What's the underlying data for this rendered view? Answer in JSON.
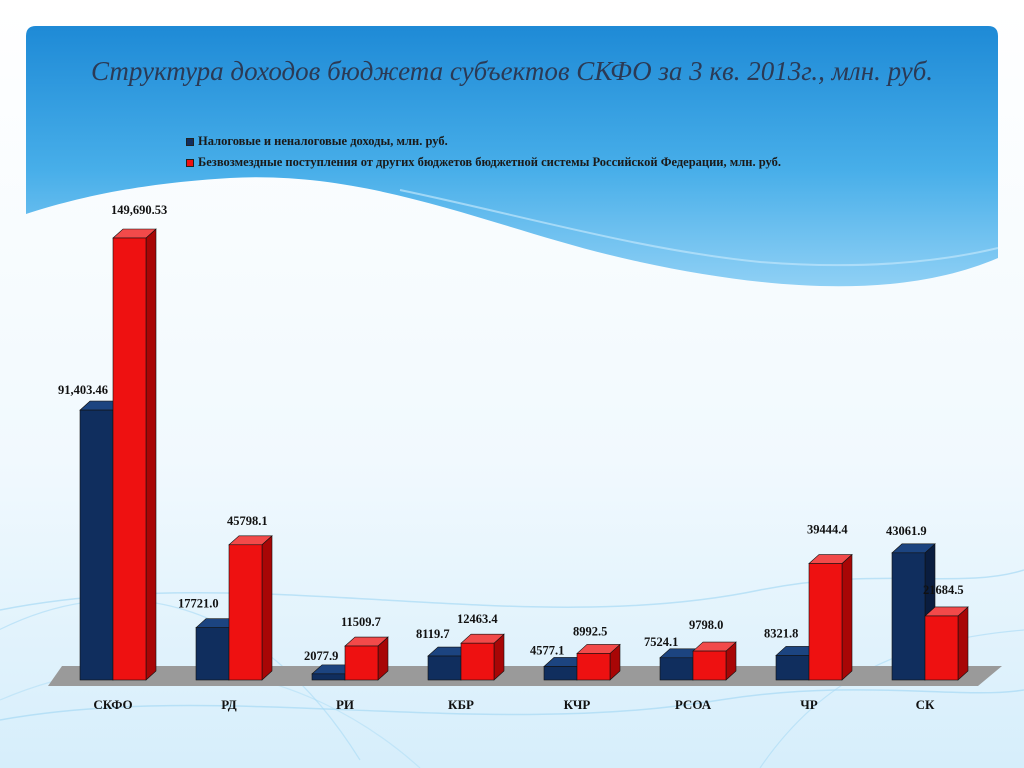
{
  "page": {
    "title": "Структура доходов бюджета субъектов СКФО за 3 кв. 2013г., млн. руб."
  },
  "colors": {
    "series1_front": "#102e5e",
    "series1_side": "#0a1d3f",
    "series1_top": "#1c4480",
    "series2_front": "#ee1111",
    "series2_side": "#a80606",
    "series2_top": "#f24a4a",
    "floor": "#9a9a9a"
  },
  "chart_data": {
    "type": "bar",
    "title": "Структура доходов бюджета субъектов СКФО за 3 кв. 2013г., млн. руб.",
    "categories": [
      "СКФО",
      "РД",
      "РИ",
      "КБР",
      "КЧР",
      "РСОА",
      "ЧР",
      "СК"
    ],
    "series": [
      {
        "name": "Налоговые и неналоговые доходы, млн. руб.",
        "values": [
          91403.46,
          17721.0,
          2077.9,
          8119.7,
          4577.1,
          7524.1,
          8321.8,
          43061.9
        ],
        "labels": [
          "91,403.46",
          "17721.0",
          "2077.9",
          "8119.7",
          "4577.1",
          "7524.1",
          "8321.8",
          "43061.9"
        ]
      },
      {
        "name": "Безвозмездные поступления от других бюджетов бюджетной системы Российской Федерации, млн. руб.",
        "values": [
          149690.53,
          45798.1,
          11509.7,
          12463.4,
          8992.5,
          9798.0,
          39444.4,
          21684.5
        ],
        "labels": [
          "149,690.53",
          "45798.1",
          "11509.7",
          "12463.4",
          "8992.5",
          "9798.0",
          "39444.4",
          "21684.5"
        ]
      }
    ],
    "legend": "top-left",
    "grid": false,
    "style": "3d-column"
  }
}
